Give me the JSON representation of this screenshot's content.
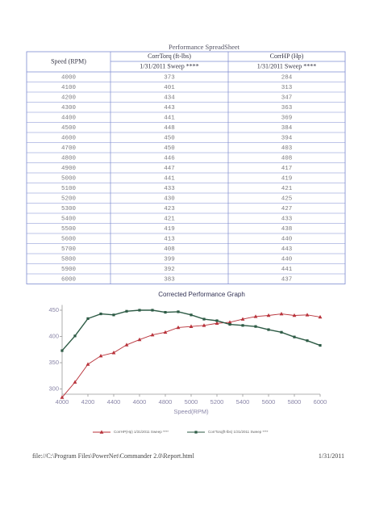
{
  "header": {
    "title": "Performance SpreadSheet"
  },
  "table": {
    "columns": [
      "Speed (RPM)",
      "CorrTorq (ft-lbs)",
      "CorrHP (Hp)"
    ],
    "sweep_labels": [
      "1/31/2011 Sweep ****",
      "1/31/2011 Sweep ****"
    ],
    "rows": [
      [
        4000,
        373,
        284
      ],
      [
        4100,
        401,
        313
      ],
      [
        4200,
        434,
        347
      ],
      [
        4300,
        443,
        363
      ],
      [
        4400,
        441,
        369
      ],
      [
        4500,
        448,
        384
      ],
      [
        4600,
        450,
        394
      ],
      [
        4700,
        450,
        403
      ],
      [
        4800,
        446,
        408
      ],
      [
        4900,
        447,
        417
      ],
      [
        5000,
        441,
        419
      ],
      [
        5100,
        433,
        421
      ],
      [
        5200,
        430,
        425
      ],
      [
        5300,
        423,
        427
      ],
      [
        5400,
        421,
        433
      ],
      [
        5500,
        419,
        438
      ],
      [
        5600,
        413,
        440
      ],
      [
        5700,
        408,
        443
      ],
      [
        5800,
        399,
        440
      ],
      [
        5900,
        392,
        441
      ],
      [
        6000,
        383,
        437
      ]
    ]
  },
  "chart_data": {
    "type": "line",
    "title": "Corrected Performance Graph",
    "x_label": "Speed(RPM)",
    "x": [
      4000,
      4100,
      4200,
      4300,
      4400,
      4500,
      4600,
      4700,
      4800,
      4900,
      5000,
      5100,
      5200,
      5300,
      5400,
      5500,
      5600,
      5700,
      5800,
      5900,
      6000
    ],
    "xlim": [
      4000,
      6000
    ],
    "xticks": [
      4000,
      4200,
      4400,
      4600,
      4800,
      5000,
      5200,
      5400,
      5600,
      5800,
      6000
    ],
    "ylim": [
      290,
      460
    ],
    "yticks": [
      300,
      350,
      400,
      450
    ],
    "series": [
      {
        "name": "CorrHP(Hp) 1/31/2011 Sweep ****",
        "color": "#b8323a",
        "marker": "triangle",
        "values": [
          284,
          313,
          347,
          363,
          369,
          384,
          394,
          403,
          408,
          417,
          419,
          421,
          425,
          427,
          433,
          438,
          440,
          443,
          440,
          441,
          437
        ]
      },
      {
        "name": "CorrTorq(ft-lbs) 1/31/2011 Sweep ****",
        "color": "#2d5b45",
        "marker": "square",
        "values": [
          373,
          401,
          434,
          443,
          441,
          448,
          450,
          450,
          446,
          447,
          441,
          433,
          430,
          423,
          421,
          419,
          413,
          408,
          399,
          392,
          383
        ]
      }
    ]
  },
  "footer": {
    "path": "file://C:\\Program Files\\PowerNet\\Commander 2.0\\Report.html",
    "date": "1/31/2011"
  }
}
